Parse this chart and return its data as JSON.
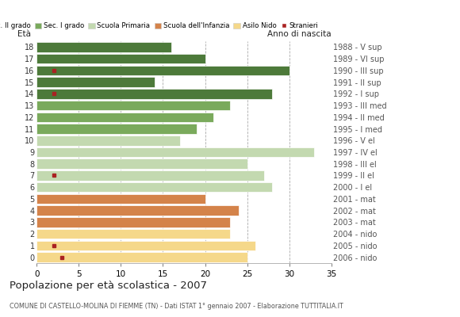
{
  "ages": [
    0,
    1,
    2,
    3,
    4,
    5,
    6,
    7,
    8,
    9,
    10,
    11,
    12,
    13,
    14,
    15,
    16,
    17,
    18
  ],
  "years": [
    "2006 - nido",
    "2005 - nido",
    "2004 - nido",
    "2003 - mat",
    "2002 - mat",
    "2001 - mat",
    "2000 - I el",
    "1999 - II el",
    "1998 - III el",
    "1997 - IV el",
    "1996 - V el",
    "1995 - I med",
    "1994 - II med",
    "1993 - III med",
    "1992 - I sup",
    "1991 - II sup",
    "1990 - III sup",
    "1989 - VI sup",
    "1988 - V sup"
  ],
  "values": [
    25,
    26,
    23,
    23,
    24,
    20,
    28,
    27,
    25,
    33,
    17,
    19,
    21,
    23,
    28,
    14,
    30,
    20,
    16
  ],
  "stranieri_x": [
    3,
    2,
    0,
    0,
    0,
    0,
    0,
    2,
    0,
    0,
    0,
    0,
    0,
    0,
    2,
    0,
    2,
    0,
    0
  ],
  "bar_colors": [
    "#f5d88a",
    "#f5d88a",
    "#f5d88a",
    "#d4834a",
    "#d4834a",
    "#d4834a",
    "#c3d9b0",
    "#c3d9b0",
    "#c3d9b0",
    "#c3d9b0",
    "#c3d9b0",
    "#7aaa5c",
    "#7aaa5c",
    "#7aaa5c",
    "#4d7a3a",
    "#4d7a3a",
    "#4d7a3a",
    "#4d7a3a",
    "#4d7a3a"
  ],
  "stranieri_color": "#aa2222",
  "title": "Popolazione per età scolastica - 2007",
  "subtitle": "COMUNE DI CASTELLO-MOLINA DI FIEMME (TN) - Dati ISTAT 1° gennaio 2007 - Elaborazione TUTTITALIA.IT",
  "xlabel_age": "Età",
  "xlabel_year": "Anno di nascita",
  "xlim": [
    0,
    35
  ],
  "xticks": [
    0,
    5,
    10,
    15,
    20,
    25,
    30,
    35
  ],
  "grid_color": "#aaaaaa",
  "bg_color": "#ffffff",
  "legend_items": [
    {
      "label": "Sec. II grado",
      "color": "#4d7a3a"
    },
    {
      "label": "Sec. I grado",
      "color": "#7aaa5c"
    },
    {
      "label": "Scuola Primaria",
      "color": "#c3d9b0"
    },
    {
      "label": "Scuola dell'Infanzia",
      "color": "#d4834a"
    },
    {
      "label": "Asilo Nido",
      "color": "#f5d88a"
    },
    {
      "label": "Stranieri",
      "color": "#aa2222"
    }
  ]
}
